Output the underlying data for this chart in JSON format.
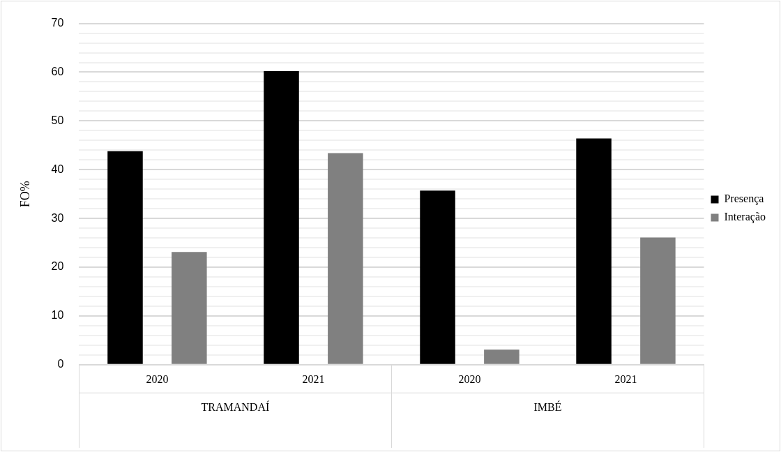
{
  "chart_data": {
    "type": "bar",
    "ylabel": "FO%",
    "categories": [
      "2020",
      "2021",
      "2020",
      "2021"
    ],
    "annotations": [
      "TRAMANDAÍ",
      "IMBÉ"
    ],
    "series": [
      {
        "name": "Presença",
        "color": "#000000",
        "values": [
          43.8,
          60.2,
          35.7,
          46.4
        ]
      },
      {
        "name": "Interação",
        "color": "#808080",
        "values": [
          23.1,
          43.4,
          3.1,
          26.1
        ]
      }
    ],
    "ylim": [
      0,
      70
    ],
    "yticks": [
      0,
      {
        "value": 2,
        "label": null
      },
      {
        "value": 4,
        "label": null
      },
      {
        "value": 6,
        "label": null
      },
      {
        "value": 8,
        "label": null
      },
      10,
      {
        "value": 12,
        "label": null
      },
      {
        "value": 14,
        "label": null
      },
      {
        "value": 16,
        "label": null
      },
      {
        "value": 18,
        "label": null
      },
      20,
      {
        "value": 22,
        "label": null
      },
      {
        "value": 24,
        "label": null
      },
      {
        "value": 26,
        "label": null
      },
      {
        "value": 28,
        "label": null
      },
      30,
      {
        "value": 32,
        "label": null
      },
      {
        "value": 34,
        "label": null
      },
      {
        "value": 36,
        "label": null
      },
      {
        "value": 38,
        "label": null
      },
      40,
      {
        "value": 42,
        "label": null
      },
      {
        "value": 44,
        "label": null
      },
      {
        "value": 46,
        "label": null
      },
      {
        "value": 48,
        "label": null
      },
      50,
      {
        "value": 52,
        "label": null
      },
      {
        "value": 54,
        "label": null
      },
      {
        "value": 56,
        "label": null
      },
      {
        "value": 58,
        "label": null
      },
      60,
      {
        "value": 62,
        "label": null
      },
      {
        "value": 64,
        "label": null
      },
      {
        "value": 66,
        "label": null
      },
      {
        "value": 68,
        "label": null
      },
      70
    ],
    "grid": true,
    "legend": "right"
  }
}
